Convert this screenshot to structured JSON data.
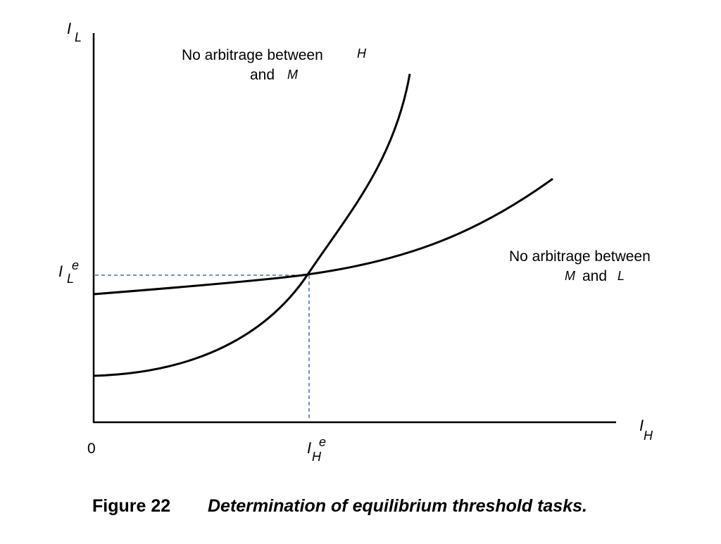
{
  "axes": {
    "y_symbol": "I",
    "y_subscript": "L",
    "x_symbol": "I",
    "x_subscript": "H",
    "origin": "0"
  },
  "equilibrium": {
    "y_symbol": "I",
    "y_superscript": "e",
    "y_subscript": "L",
    "x_symbol": "I",
    "x_superscript": "e",
    "x_subscript": "H"
  },
  "curves": {
    "hm": {
      "label_line1": "No arbitrage between",
      "label_var1": "H",
      "label_line2_prefix": "and",
      "label_var2": "M"
    },
    "ml": {
      "label_line1": "No arbitrage between",
      "label_var1": "M",
      "label_mid": "and",
      "label_var2": "L"
    }
  },
  "colors": {
    "curve": "#000000",
    "guide": "#4a6fa5"
  },
  "caption": {
    "number": "Figure 22",
    "text": "Determination of equilibrium threshold tasks."
  }
}
